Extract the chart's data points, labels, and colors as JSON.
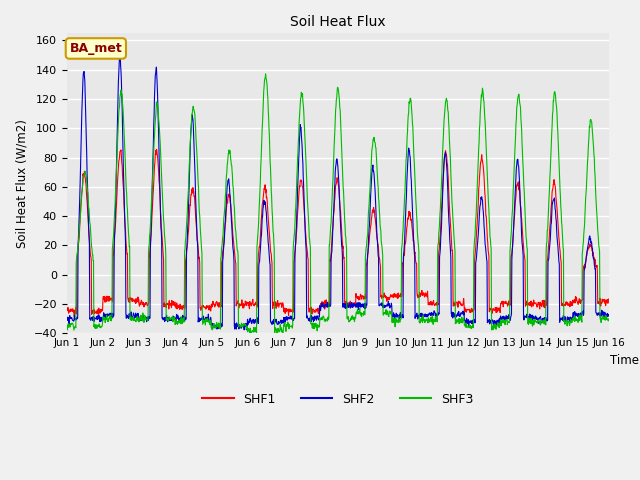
{
  "title": "Soil Heat Flux",
  "ylabel": "Soil Heat Flux (W/m2)",
  "xlabel": "Time",
  "xlim_days": 15,
  "ylim": [
    -40,
    165
  ],
  "yticks": [
    -40,
    -20,
    0,
    20,
    40,
    60,
    80,
    100,
    120,
    140,
    160
  ],
  "colors": {
    "SHF1": "#ff0000",
    "SHF2": "#0000cd",
    "SHF3": "#00bb00"
  },
  "legend_label": "BA_met",
  "fig_bg_color": "#f0f0f0",
  "plot_bg_color": "#e8e8e8",
  "grid_color": "#ffffff",
  "xtick_labels": [
    "Jun 1",
    "Jun 2",
    "Jun 3",
    "Jun 4",
    "Jun 5",
    "Jun 6",
    "Jun 7",
    "Jun 8",
    "Jun 9",
    "Jun 10",
    "Jun 11",
    "Jun 12",
    "Jun 13",
    "Jun 14",
    "Jun 15",
    "Jun 16"
  ]
}
